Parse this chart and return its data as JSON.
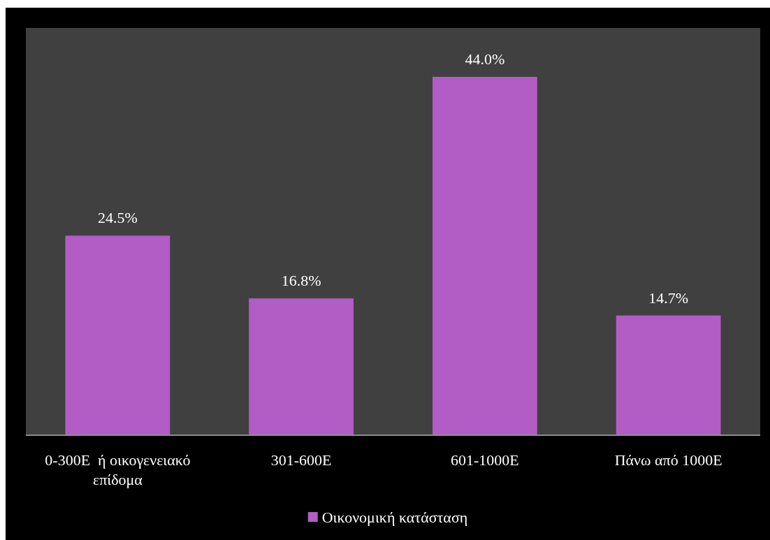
{
  "chart_data": {
    "type": "bar",
    "categories": [
      "0-300E  ή οικογενειακό επίδομα",
      "301-600E",
      "601-1000E",
      "Πάνω από 1000E"
    ],
    "series": [
      {
        "name": "Οικονομική κατάσταση",
        "color": "#b25cc6",
        "values": [
          24.5,
          16.8,
          44.0,
          14.7
        ],
        "value_labels": [
          "24.5%",
          "16.8%",
          "44.0%",
          "14.7%"
        ]
      }
    ],
    "ylim": [
      0,
      50
    ],
    "tick_labels": "x",
    "legend": "bottom"
  }
}
